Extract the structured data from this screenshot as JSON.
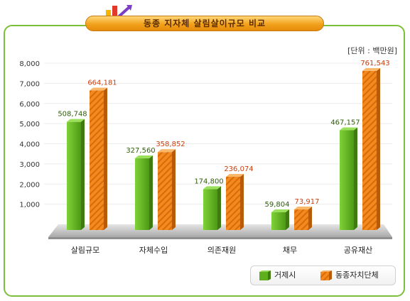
{
  "title": "동종 지자체 살림살이규모 비교",
  "unit": "[단위 : 백만원]",
  "colors": {
    "series1": "#5fae1e",
    "series1_dark": "#3f7c10",
    "series2": "#f28a1e",
    "series2_dark": "#b85a08",
    "series1_label": "#2f5d0a",
    "series2_label": "#c8400e",
    "border": "#7cbf3a"
  },
  "chart_data": {
    "type": "bar",
    "categories": [
      "살림규모",
      "자체수입",
      "의존재원",
      "채무",
      "공유재산"
    ],
    "series": [
      {
        "name": "거제시",
        "values": [
          508748,
          327560,
          174800,
          59804,
          467157
        ],
        "labels": [
          "508,748",
          "327,560",
          "174,800",
          "59,804",
          "467,157"
        ]
      },
      {
        "name": "동종자치단체",
        "values": [
          664181,
          358852,
          236074,
          73917,
          761543
        ],
        "labels": [
          "664,181",
          "358,852",
          "236,074",
          "73,917",
          "761,543"
        ]
      }
    ],
    "y_ticks": [
      "1,000",
      "2,000",
      "3,000",
      "4,000",
      "5,000",
      "6,000",
      "7,000",
      "8,000"
    ],
    "ylim": [
      0,
      800000
    ],
    "legend": "bottom-right"
  }
}
